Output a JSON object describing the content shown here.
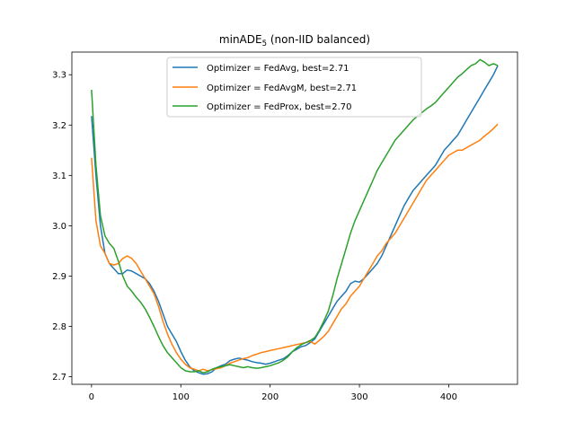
{
  "chart_data": {
    "type": "line",
    "title_main": "minADE",
    "title_sub": "5",
    "title_rest": " (non-IID balanced)",
    "xlabel": "",
    "ylabel": "",
    "xlim": [
      -22,
      477
    ],
    "ylim": [
      2.685,
      3.345
    ],
    "xticks": [
      0,
      100,
      200,
      300,
      400
    ],
    "yticks": [
      2.7,
      2.8,
      2.9,
      3.0,
      3.1,
      3.2,
      3.3
    ],
    "ytick_labels": [
      "2.7",
      "2.8",
      "2.9",
      "3.0",
      "3.1",
      "3.2",
      "3.3"
    ],
    "grid": false,
    "legend_position": "upper center",
    "series": [
      {
        "name": "Optimizer = FedAvg, best=2.71",
        "color": "#1f77b4",
        "x": [
          0,
          5,
          10,
          15,
          20,
          25,
          30,
          35,
          40,
          45,
          50,
          55,
          60,
          65,
          70,
          75,
          80,
          85,
          90,
          95,
          100,
          105,
          110,
          115,
          120,
          125,
          130,
          135,
          140,
          145,
          150,
          155,
          160,
          165,
          170,
          175,
          180,
          185,
          190,
          195,
          200,
          205,
          210,
          215,
          220,
          225,
          230,
          235,
          240,
          245,
          250,
          255,
          260,
          265,
          270,
          275,
          280,
          285,
          290,
          295,
          300,
          305,
          310,
          315,
          320,
          325,
          330,
          335,
          340,
          345,
          350,
          355,
          360,
          365,
          370,
          375,
          380,
          385,
          390,
          395,
          400,
          405,
          410,
          415,
          420,
          425,
          430,
          435,
          440,
          445,
          450,
          455
        ],
        "y": [
          3.218,
          3.1,
          3.0,
          2.945,
          2.925,
          2.915,
          2.905,
          2.905,
          2.912,
          2.91,
          2.905,
          2.9,
          2.895,
          2.885,
          2.87,
          2.85,
          2.825,
          2.8,
          2.785,
          2.77,
          2.75,
          2.733,
          2.72,
          2.712,
          2.708,
          2.705,
          2.706,
          2.71,
          2.718,
          2.722,
          2.725,
          2.732,
          2.735,
          2.737,
          2.735,
          2.733,
          2.73,
          2.728,
          2.727,
          2.725,
          2.727,
          2.73,
          2.733,
          2.736,
          2.742,
          2.75,
          2.755,
          2.76,
          2.762,
          2.768,
          2.775,
          2.79,
          2.805,
          2.82,
          2.835,
          2.85,
          2.86,
          2.87,
          2.885,
          2.89,
          2.888,
          2.895,
          2.905,
          2.915,
          2.925,
          2.94,
          2.96,
          2.98,
          3.0,
          3.02,
          3.04,
          3.055,
          3.07,
          3.08,
          3.09,
          3.1,
          3.11,
          3.12,
          3.135,
          3.15,
          3.16,
          3.17,
          3.18,
          3.195,
          3.21,
          3.225,
          3.24,
          3.255,
          3.27,
          3.285,
          3.3,
          3.318
        ]
      },
      {
        "name": "Optimizer = FedAvgM, best=2.71",
        "color": "#ff7f0e",
        "x": [
          0,
          5,
          10,
          15,
          20,
          25,
          30,
          35,
          40,
          45,
          50,
          55,
          60,
          65,
          70,
          75,
          80,
          85,
          90,
          95,
          100,
          105,
          110,
          115,
          120,
          125,
          130,
          135,
          140,
          145,
          150,
          155,
          160,
          165,
          170,
          175,
          180,
          185,
          190,
          195,
          200,
          205,
          210,
          215,
          220,
          225,
          230,
          235,
          240,
          245,
          250,
          255,
          260,
          265,
          270,
          275,
          280,
          285,
          290,
          295,
          300,
          305,
          310,
          315,
          320,
          325,
          330,
          335,
          340,
          345,
          350,
          355,
          360,
          365,
          370,
          375,
          380,
          385,
          390,
          395,
          400,
          405,
          410,
          415,
          420,
          425,
          430,
          435,
          440,
          445,
          450,
          455
        ],
        "y": [
          3.135,
          3.01,
          2.96,
          2.945,
          2.925,
          2.922,
          2.925,
          2.935,
          2.94,
          2.935,
          2.925,
          2.91,
          2.895,
          2.88,
          2.865,
          2.84,
          2.81,
          2.785,
          2.765,
          2.748,
          2.735,
          2.725,
          2.718,
          2.715,
          2.712,
          2.715,
          2.712,
          2.714,
          2.716,
          2.718,
          2.722,
          2.727,
          2.73,
          2.733,
          2.736,
          2.738,
          2.742,
          2.745,
          2.748,
          2.75,
          2.752,
          2.754,
          2.756,
          2.758,
          2.76,
          2.762,
          2.764,
          2.766,
          2.768,
          2.77,
          2.765,
          2.772,
          2.78,
          2.79,
          2.805,
          2.82,
          2.835,
          2.845,
          2.86,
          2.87,
          2.88,
          2.895,
          2.91,
          2.925,
          2.94,
          2.95,
          2.965,
          2.975,
          2.985,
          3.0,
          3.015,
          3.03,
          3.045,
          3.06,
          3.075,
          3.09,
          3.1,
          3.11,
          3.12,
          3.13,
          3.14,
          3.145,
          3.15,
          3.15,
          3.155,
          3.16,
          3.165,
          3.17,
          3.178,
          3.185,
          3.193,
          3.202
        ]
      },
      {
        "name": "Optimizer = FedProx, best=2.70",
        "color": "#2ca02c",
        "x": [
          0,
          5,
          10,
          15,
          20,
          25,
          30,
          35,
          40,
          45,
          50,
          55,
          60,
          65,
          70,
          75,
          80,
          85,
          90,
          95,
          100,
          105,
          110,
          115,
          120,
          125,
          130,
          135,
          140,
          145,
          150,
          155,
          160,
          165,
          170,
          175,
          180,
          185,
          190,
          195,
          200,
          205,
          210,
          215,
          220,
          225,
          230,
          235,
          240,
          245,
          250,
          255,
          260,
          265,
          270,
          275,
          280,
          285,
          290,
          295,
          300,
          305,
          310,
          315,
          320,
          325,
          330,
          335,
          340,
          345,
          350,
          355,
          360,
          365,
          370,
          375,
          380,
          385,
          390,
          395,
          400,
          405,
          410,
          415,
          420,
          425,
          430,
          435,
          440,
          445,
          450,
          455
        ],
        "y": [
          3.27,
          3.12,
          3.02,
          2.98,
          2.965,
          2.955,
          2.93,
          2.9,
          2.88,
          2.87,
          2.858,
          2.848,
          2.835,
          2.818,
          2.8,
          2.78,
          2.762,
          2.748,
          2.738,
          2.728,
          2.718,
          2.712,
          2.71,
          2.71,
          2.712,
          2.708,
          2.71,
          2.715,
          2.718,
          2.72,
          2.722,
          2.724,
          2.722,
          2.72,
          2.718,
          2.72,
          2.718,
          2.717,
          2.718,
          2.72,
          2.722,
          2.725,
          2.728,
          2.733,
          2.74,
          2.75,
          2.758,
          2.764,
          2.768,
          2.772,
          2.778,
          2.792,
          2.81,
          2.83,
          2.86,
          2.895,
          2.925,
          2.955,
          2.985,
          3.01,
          3.03,
          3.05,
          3.07,
          3.09,
          3.11,
          3.125,
          3.14,
          3.155,
          3.17,
          3.18,
          3.19,
          3.2,
          3.21,
          3.218,
          3.225,
          3.232,
          3.238,
          3.245,
          3.255,
          3.265,
          3.275,
          3.285,
          3.295,
          3.302,
          3.31,
          3.318,
          3.322,
          3.33,
          3.325,
          3.318,
          3.322,
          3.318
        ]
      }
    ]
  }
}
